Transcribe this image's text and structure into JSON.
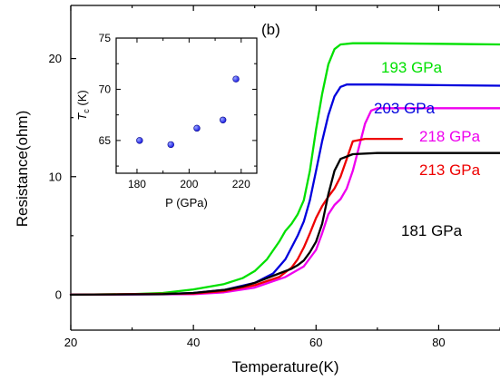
{
  "chart_data": [
    {
      "type": "line",
      "panel_label": "(b)",
      "xlabel": "Temperature(K)",
      "ylabel": "Resistance(ohm)",
      "xlim": [
        20,
        90
      ],
      "ylim": [
        -3,
        24.5
      ],
      "xticks": [
        20,
        40,
        60,
        80
      ],
      "yticks": [
        0,
        10,
        20
      ],
      "grid": false,
      "series": [
        {
          "name": "193 GPa",
          "color": "#00e000",
          "x": [
            20,
            30,
            35,
            40,
            45,
            48,
            50,
            52,
            54,
            55,
            56,
            57,
            58,
            59,
            60,
            61,
            62,
            63,
            64,
            66,
            70,
            80,
            90
          ],
          "y": [
            0,
            0.05,
            0.15,
            0.45,
            0.9,
            1.4,
            2.0,
            3.0,
            4.5,
            5.4,
            6.0,
            6.8,
            8.0,
            10.5,
            14.0,
            17.0,
            19.5,
            20.8,
            21.2,
            21.3,
            21.3,
            21.25,
            21.2
          ]
        },
        {
          "name": "203 GPa",
          "color": "#0000dd",
          "x": [
            20,
            35,
            40,
            45,
            50,
            53,
            55,
            56,
            57,
            58,
            59,
            60,
            61,
            62,
            63,
            64,
            65,
            70,
            80,
            90
          ],
          "y": [
            0,
            0.05,
            0.15,
            0.4,
            1.0,
            1.8,
            3.0,
            4.0,
            5.0,
            6.2,
            8.0,
            10.5,
            13.0,
            15.2,
            16.8,
            17.6,
            17.8,
            17.8,
            17.75,
            17.7
          ]
        },
        {
          "name": "218 GPa",
          "color": "#ee00ee",
          "x": [
            20,
            40,
            45,
            50,
            55,
            58,
            60,
            61,
            62,
            63,
            64,
            65,
            66,
            67,
            68,
            69,
            70,
            75,
            80,
            90
          ],
          "y": [
            0,
            0.05,
            0.2,
            0.6,
            1.5,
            2.4,
            3.8,
            5.2,
            6.8,
            7.6,
            8.1,
            9.0,
            10.5,
            12.5,
            14.5,
            15.6,
            15.8,
            15.8,
            15.8,
            15.8
          ]
        },
        {
          "name": "213 GPa",
          "color": "#ee0000",
          "x": [
            20,
            40,
            45,
            50,
            54,
            56,
            57,
            58,
            59,
            60,
            61,
            62,
            63,
            64,
            65,
            66,
            68,
            70,
            72,
            74
          ],
          "y": [
            0,
            0.1,
            0.3,
            0.8,
            1.5,
            2.3,
            3.0,
            4.0,
            5.2,
            6.5,
            7.5,
            8.3,
            9.0,
            10.0,
            11.5,
            13.0,
            13.2,
            13.2,
            13.2,
            13.2
          ]
        },
        {
          "name": "181 GPa",
          "color": "#000000",
          "x": [
            20,
            35,
            40,
            45,
            48,
            50,
            52,
            54,
            56,
            57,
            58,
            59,
            60,
            61,
            62,
            63,
            64,
            66,
            70,
            80,
            90
          ],
          "y": [
            0,
            0.05,
            0.15,
            0.4,
            0.7,
            1.0,
            1.4,
            1.8,
            2.2,
            2.5,
            2.9,
            3.6,
            4.5,
            6.0,
            8.5,
            10.5,
            11.5,
            11.9,
            12.0,
            12.0,
            12.0
          ]
        }
      ]
    },
    {
      "type": "scatter",
      "xlabel": "P (GPa)",
      "ylabel_main": "T",
      "ylabel_sub": "c",
      "ylabel_unit": " (K)",
      "xlim": [
        172,
        226
      ],
      "ylim": [
        61.8,
        75
      ],
      "xticks": [
        180,
        200,
        220
      ],
      "yticks": [
        65,
        70,
        75
      ],
      "grid": false,
      "marker_color": "#1a1ae6",
      "x": [
        181,
        193,
        203,
        213,
        218
      ],
      "y": [
        65.0,
        64.6,
        66.2,
        67.0,
        71.0
      ]
    }
  ]
}
